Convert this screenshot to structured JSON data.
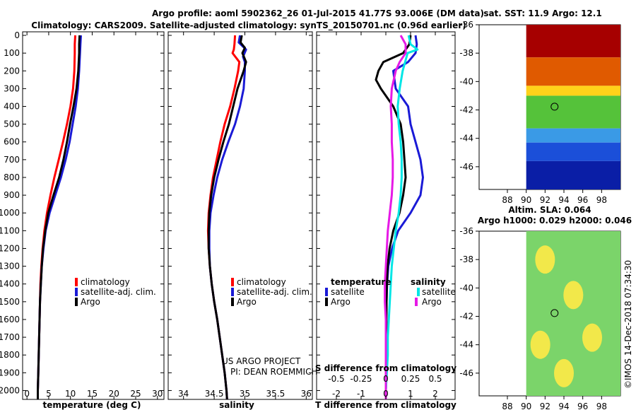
{
  "header": {
    "line1": "Argo profile: aoml 5902362_26 01-Jul-2015 41.77S 93.006E (DM data)",
    "line2": "Climatology: CARS2009. Satellite-adjusted climatology: synTS_20150701.nc (0.96d earlier)"
  },
  "colors": {
    "clim": "#ff0000",
    "sat": "#1a1ad6",
    "argo": "#000000",
    "sal_sat": "#00e6e6",
    "sal_argo": "#e619e6"
  },
  "depth_ticks": [
    "0",
    "100",
    "200",
    "300",
    "400",
    "500",
    "600",
    "700",
    "800",
    "900",
    "1000",
    "1100",
    "1200",
    "1300",
    "1400",
    "1500",
    "1600",
    "1700",
    "1800",
    "1900",
    "2000"
  ],
  "credits": {
    "line1": "US ARGO PROJECT",
    "line2": "PI: DEAN ROEMMICH"
  },
  "side": {
    "sst_title": "sat. SST: 11.9 Argo: 12.1",
    "sla_title1": "Altim. SLA: 0.064",
    "sla_title2": "Argo h1000: 0.029 h2000: 0.046",
    "lat_ticks": [
      "-36",
      "-38",
      "-40",
      "-42",
      "-44",
      "-46"
    ],
    "lon_ticks": [
      "88",
      "90",
      "92",
      "94",
      "96",
      "98"
    ],
    "float_lat": -41.77,
    "float_lon": 93.006,
    "stamp": "©IMOS 14-Dec-2018 07:34:30"
  },
  "chart_data": [
    {
      "type": "line",
      "name": "temperature",
      "xlabel": "temperature (deg C)",
      "xlim": [
        -1,
        31.5
      ],
      "ylim": [
        2050,
        -20
      ],
      "xticks": [
        "0",
        "5",
        "10",
        "15",
        "20",
        "25",
        "30"
      ],
      "legend": [
        "climatology",
        "satellite-adj. clim.",
        "Argo"
      ],
      "series": [
        {
          "name": "climatology",
          "key": "clim",
          "depth": [
            0,
            50,
            100,
            200,
            300,
            400,
            500,
            600,
            700,
            800,
            900,
            1000,
            1100,
            1200,
            1300,
            1400,
            1500,
            1600,
            1700,
            1800,
            1900,
            2000,
            2050
          ],
          "values": [
            11.1,
            11.0,
            11.0,
            10.9,
            10.6,
            10.0,
            9.2,
            8.3,
            7.3,
            6.3,
            5.4,
            4.6,
            4.0,
            3.6,
            3.3,
            3.1,
            3.0,
            2.9,
            2.8,
            2.7,
            2.6,
            2.5,
            2.5
          ]
        },
        {
          "name": "satellite-adj. clim.",
          "key": "sat",
          "depth": [
            0,
            50,
            100,
            200,
            300,
            400,
            500,
            600,
            700,
            800,
            900,
            1000,
            1100,
            1200,
            1300,
            1400,
            1500,
            1600,
            1700,
            1800,
            1900,
            2000,
            2050
          ],
          "values": [
            12.4,
            12.3,
            12.2,
            12.0,
            11.7,
            11.2,
            10.5,
            9.8,
            8.9,
            7.8,
            6.5,
            5.2,
            4.3,
            3.8,
            3.4,
            3.2,
            3.0,
            2.9,
            2.8,
            2.7,
            2.6,
            2.5,
            2.5
          ]
        },
        {
          "name": "Argo",
          "key": "argo",
          "depth": [
            0,
            50,
            100,
            200,
            300,
            400,
            500,
            600,
            700,
            800,
            900,
            1000,
            1100,
            1200,
            1300,
            1400,
            1500,
            1600,
            1700,
            1800,
            1900,
            2000,
            2050
          ],
          "values": [
            12.1,
            12.0,
            12.0,
            11.8,
            11.4,
            10.7,
            9.9,
            9.2,
            8.4,
            7.4,
            6.1,
            4.9,
            4.2,
            3.7,
            3.4,
            3.2,
            3.0,
            2.9,
            2.8,
            2.7,
            2.6,
            2.5,
            2.5
          ]
        }
      ]
    },
    {
      "type": "line",
      "name": "salinity",
      "xlabel": "salinity",
      "xlim": [
        33.75,
        36.1
      ],
      "ylim": [
        2050,
        -20
      ],
      "xticks": [
        "34",
        "34.5",
        "35",
        "35.5",
        "36"
      ],
      "legend": [
        "climatology",
        "satellite-adj. clim.",
        "Argo"
      ],
      "series": [
        {
          "name": "climatology",
          "key": "clim",
          "depth": [
            0,
            50,
            80,
            100,
            150,
            200,
            300,
            400,
            500,
            600,
            700,
            800,
            900,
            1000,
            1100,
            1200,
            1300,
            1400,
            1500,
            1600,
            1700,
            1800,
            1900,
            2000,
            2050
          ],
          "values": [
            34.84,
            34.83,
            34.82,
            34.8,
            34.91,
            34.89,
            34.83,
            34.76,
            34.67,
            34.6,
            34.54,
            34.48,
            34.44,
            34.41,
            34.4,
            34.41,
            34.43,
            34.46,
            34.5,
            34.55,
            34.59,
            34.63,
            34.67,
            34.7,
            34.71
          ]
        },
        {
          "name": "satellite-adj. clim.",
          "key": "sat",
          "depth": [
            0,
            40,
            80,
            120,
            150,
            200,
            300,
            400,
            500,
            600,
            700,
            800,
            900,
            1000,
            1100,
            1200,
            1300,
            1400,
            1500,
            1600,
            1700,
            1800,
            1900,
            2000,
            2050
          ],
          "values": [
            34.92,
            34.9,
            35.02,
            34.97,
            35.0,
            35.0,
            34.98,
            34.92,
            34.84,
            34.73,
            34.63,
            34.55,
            34.49,
            34.44,
            34.42,
            34.42,
            34.43,
            34.46,
            34.5,
            34.55,
            34.59,
            34.63,
            34.67,
            34.7,
            34.71
          ]
        },
        {
          "name": "Argo",
          "key": "argo",
          "depth": [
            0,
            40,
            70,
            100,
            150,
            200,
            300,
            400,
            500,
            600,
            700,
            800,
            900,
            1000,
            1100,
            1200,
            1300,
            1400,
            1500,
            1600,
            1700,
            1800,
            1900,
            2000,
            2050
          ],
          "values": [
            34.95,
            34.93,
            35.0,
            34.96,
            35.02,
            34.98,
            34.88,
            34.81,
            34.74,
            34.65,
            34.57,
            34.5,
            34.45,
            34.42,
            34.41,
            34.41,
            34.43,
            34.46,
            34.5,
            34.55,
            34.59,
            34.63,
            34.67,
            34.7,
            34.71
          ]
        }
      ]
    },
    {
      "type": "line",
      "name": "difference",
      "xlabel": "T difference from climatology",
      "xlabel_top": "S difference from climatology",
      "xlim": [
        -2.8,
        2.8
      ],
      "ylim": [
        2050,
        -20
      ],
      "xticks": [
        "-2",
        "-1",
        "0",
        "1",
        "2"
      ],
      "xticks_s": [
        "-0.5",
        "-0.25",
        "0",
        "0.25",
        "0.5"
      ],
      "legend_titles": [
        "temperature",
        "salinity"
      ],
      "legend": [
        "satellite",
        "Argo",
        "satellite",
        "Argo"
      ],
      "series": [
        {
          "name": "T satellite",
          "key": "sat",
          "depth": [
            0,
            50,
            100,
            150,
            200,
            300,
            400,
            500,
            600,
            700,
            800,
            900,
            1000,
            1100,
            1200,
            1300,
            1400,
            1500,
            1600,
            1700,
            1800,
            1900,
            2000,
            2050
          ],
          "values": [
            1.2,
            1.25,
            1.2,
            0.9,
            0.3,
            0.4,
            0.9,
            1.0,
            1.2,
            1.4,
            1.5,
            1.4,
            1.0,
            0.5,
            0.25,
            0.1,
            0.05,
            0.03,
            0.02,
            0.02,
            0.01,
            0.01,
            0.0,
            0.0
          ]
        },
        {
          "name": "T Argo",
          "key": "argo",
          "depth": [
            0,
            50,
            100,
            150,
            200,
            250,
            300,
            400,
            500,
            600,
            700,
            800,
            900,
            1000,
            1100,
            1200,
            1300,
            1400,
            1500,
            1600,
            1700,
            1800,
            1900,
            2000,
            2050
          ],
          "values": [
            1.0,
            0.95,
            0.7,
            -0.1,
            -0.3,
            -0.4,
            -0.2,
            0.3,
            0.6,
            0.7,
            0.75,
            0.8,
            0.7,
            0.55,
            0.3,
            0.15,
            0.07,
            0.04,
            0.03,
            0.02,
            0.02,
            0.01,
            0.01,
            0.0,
            0.0
          ]
        },
        {
          "name": "S satellite",
          "key": "sal_sat",
          "depth": [
            0,
            50,
            80,
            100,
            200,
            300,
            400,
            500,
            600,
            700,
            800,
            900,
            1000,
            1100,
            1200,
            1300,
            1400,
            1500,
            1600,
            1700,
            1800,
            1900,
            2000,
            2050
          ],
          "values": [
            0.23,
            0.25,
            0.32,
            0.22,
            0.17,
            0.14,
            0.12,
            0.13,
            0.15,
            0.16,
            0.16,
            0.15,
            0.13,
            0.1,
            0.08,
            0.06,
            0.05,
            0.04,
            0.03,
            0.02,
            0.02,
            0.01,
            0.0,
            0.0
          ]
        },
        {
          "name": "S Argo",
          "key": "sal_argo",
          "depth": [
            0,
            50,
            100,
            150,
            200,
            300,
            400,
            500,
            600,
            700,
            800,
            900,
            1000,
            1100,
            1200,
            1300,
            1400,
            1500,
            1600,
            1700,
            1800,
            1900,
            2000,
            2050
          ],
          "values": [
            0.15,
            0.2,
            0.2,
            0.14,
            0.1,
            0.06,
            0.05,
            0.06,
            0.06,
            0.07,
            0.07,
            0.06,
            0.04,
            0.02,
            0.01,
            0.0,
            -0.01,
            -0.01,
            0.0,
            0.0,
            0.0,
            0.0,
            0.0,
            0.0
          ]
        }
      ]
    }
  ]
}
